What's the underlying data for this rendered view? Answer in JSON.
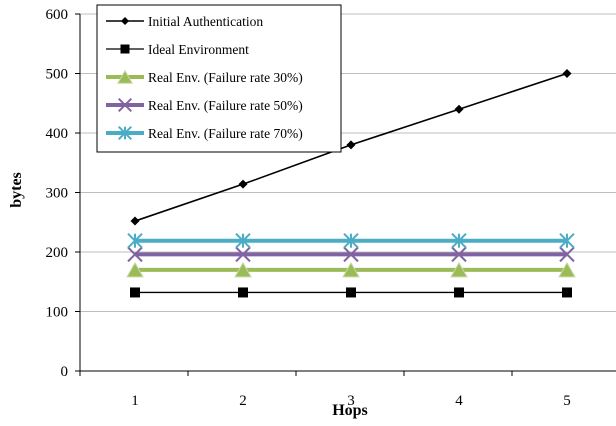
{
  "chart_data": {
    "type": "line",
    "title": "",
    "xlabel": "Hops",
    "ylabel": "bytes",
    "categories": [
      "1",
      "2",
      "3",
      "4",
      "5"
    ],
    "ylim": [
      0,
      600
    ],
    "yticks": [
      "0",
      "100",
      "200",
      "300",
      "400",
      "500",
      "600"
    ],
    "grid": "horizontal",
    "legend_position": "top-left",
    "series": [
      {
        "name": "Initial Authentication",
        "values": [
          252,
          314,
          380,
          440,
          500
        ],
        "color": "#000000",
        "marker": "diamond"
      },
      {
        "name": "Ideal Environment",
        "values": [
          132,
          132,
          132,
          132,
          132
        ],
        "color": "#000000",
        "marker": "square"
      },
      {
        "name": "Real Env. (Failure rate 30%)",
        "values": [
          170,
          170,
          170,
          170,
          170
        ],
        "color": "#9bbb59",
        "marker": "triangle"
      },
      {
        "name": "Real Env. (Failure rate 50%)",
        "values": [
          196,
          196,
          196,
          196,
          196
        ],
        "color": "#8064a2",
        "marker": "x"
      },
      {
        "name": "Real Env. (Failure rate 70%)",
        "values": [
          219,
          219,
          219,
          219,
          219
        ],
        "color": "#4bacc6",
        "marker": "asterisk"
      }
    ]
  }
}
